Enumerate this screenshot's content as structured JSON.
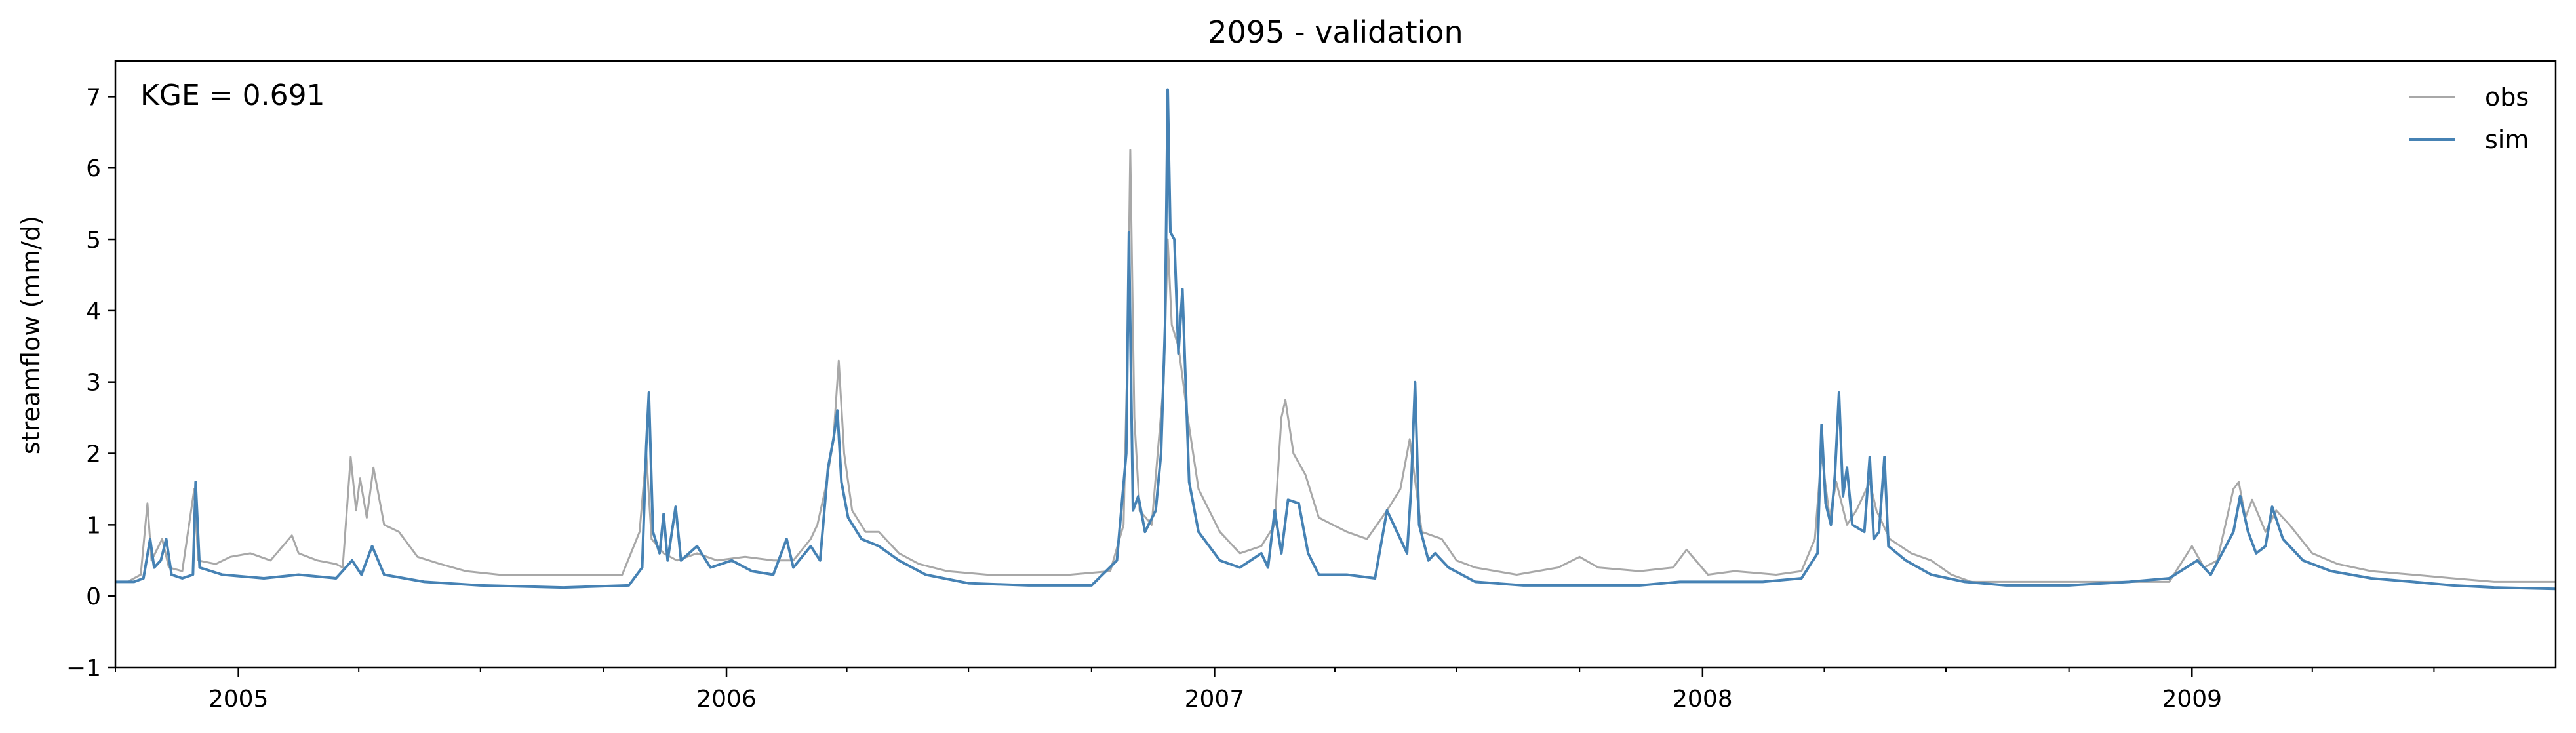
{
  "chart_data": {
    "type": "line",
    "title": "2095 - validation",
    "xlabel": "",
    "ylabel": "streamflow (mm/d)",
    "annotation": "KGE = 0.691",
    "xlim": [
      "2004-10-01",
      "2009-09-30"
    ],
    "ylim": [
      -1,
      7.5
    ],
    "yticks": [
      -1,
      0,
      1,
      2,
      3,
      4,
      5,
      6,
      7
    ],
    "xticks": [
      {
        "date": "2005-01-01",
        "label": "2005"
      },
      {
        "date": "2006-01-01",
        "label": "2006"
      },
      {
        "date": "2007-01-01",
        "label": "2007"
      },
      {
        "date": "2008-01-01",
        "label": "2008"
      },
      {
        "date": "2009-01-01",
        "label": "2009"
      }
    ],
    "minor_xticks": "quarterly",
    "grid": false,
    "legend_position": "top-right",
    "series": [
      {
        "name": "obs",
        "color": "#a8a8a8",
        "points": [
          [
            "2004-10-01",
            0.2
          ],
          [
            "2004-10-10",
            0.2
          ],
          [
            "2004-10-20",
            0.3
          ],
          [
            "2004-10-25",
            1.3
          ],
          [
            "2004-10-28",
            0.5
          ],
          [
            "2004-11-05",
            0.8
          ],
          [
            "2004-11-10",
            0.4
          ],
          [
            "2004-11-20",
            0.35
          ],
          [
            "2004-11-29",
            1.5
          ],
          [
            "2004-12-02",
            0.5
          ],
          [
            "2004-12-15",
            0.45
          ],
          [
            "2004-12-26",
            0.55
          ],
          [
            "2005-01-10",
            0.6
          ],
          [
            "2005-01-25",
            0.5
          ],
          [
            "2005-02-10",
            0.85
          ],
          [
            "2005-02-15",
            0.6
          ],
          [
            "2005-03-01",
            0.5
          ],
          [
            "2005-03-15",
            0.45
          ],
          [
            "2005-03-20",
            0.4
          ],
          [
            "2005-03-26",
            1.95
          ],
          [
            "2005-03-30",
            1.2
          ],
          [
            "2005-04-02",
            1.65
          ],
          [
            "2005-04-07",
            1.1
          ],
          [
            "2005-04-12",
            1.8
          ],
          [
            "2005-04-20",
            1.0
          ],
          [
            "2005-05-01",
            0.9
          ],
          [
            "2005-05-15",
            0.55
          ],
          [
            "2005-06-01",
            0.45
          ],
          [
            "2005-06-20",
            0.35
          ],
          [
            "2005-07-15",
            0.3
          ],
          [
            "2005-08-15",
            0.3
          ],
          [
            "2005-09-15",
            0.3
          ],
          [
            "2005-10-15",
            0.3
          ],
          [
            "2005-10-28",
            0.9
          ],
          [
            "2005-11-02",
            2.0
          ],
          [
            "2005-11-06",
            0.8
          ],
          [
            "2005-11-15",
            0.6
          ],
          [
            "2005-11-25",
            0.5
          ],
          [
            "2005-12-10",
            0.6
          ],
          [
            "2005-12-25",
            0.5
          ],
          [
            "2006-01-15",
            0.55
          ],
          [
            "2006-02-05",
            0.5
          ],
          [
            "2006-02-20",
            0.5
          ],
          [
            "2006-03-05",
            0.8
          ],
          [
            "2006-03-10",
            1.0
          ],
          [
            "2006-03-16",
            1.5
          ],
          [
            "2006-03-22",
            2.2
          ],
          [
            "2006-03-26",
            3.3
          ],
          [
            "2006-03-30",
            2.0
          ],
          [
            "2006-04-05",
            1.2
          ],
          [
            "2006-04-15",
            0.9
          ],
          [
            "2006-04-25",
            0.9
          ],
          [
            "2006-05-10",
            0.6
          ],
          [
            "2006-05-25",
            0.45
          ],
          [
            "2006-06-15",
            0.35
          ],
          [
            "2006-07-15",
            0.3
          ],
          [
            "2006-08-15",
            0.3
          ],
          [
            "2006-09-15",
            0.3
          ],
          [
            "2006-10-15",
            0.35
          ],
          [
            "2006-10-25",
            1.0
          ],
          [
            "2006-10-28",
            3.5
          ],
          [
            "2006-10-30",
            6.25
          ],
          [
            "2006-11-02",
            2.5
          ],
          [
            "2006-11-06",
            1.2
          ],
          [
            "2006-11-15",
            1.0
          ],
          [
            "2006-11-24",
            3.0
          ],
          [
            "2006-11-27",
            5.0
          ],
          [
            "2006-11-30",
            3.8
          ],
          [
            "2006-12-05",
            3.5
          ],
          [
            "2006-12-12",
            2.5
          ],
          [
            "2006-12-20",
            1.5
          ],
          [
            "2007-01-05",
            0.9
          ],
          [
            "2007-01-20",
            0.6
          ],
          [
            "2007-02-05",
            0.7
          ],
          [
            "2007-02-15",
            1.0
          ],
          [
            "2007-02-20",
            2.5
          ],
          [
            "2007-02-23",
            2.75
          ],
          [
            "2007-03-01",
            2.0
          ],
          [
            "2007-03-10",
            1.7
          ],
          [
            "2007-03-20",
            1.1
          ],
          [
            "2007-04-10",
            0.9
          ],
          [
            "2007-04-25",
            0.8
          ],
          [
            "2007-05-10",
            1.2
          ],
          [
            "2007-05-20",
            1.5
          ],
          [
            "2007-05-27",
            2.2
          ],
          [
            "2007-06-05",
            0.9
          ],
          [
            "2007-06-20",
            0.8
          ],
          [
            "2007-07-01",
            0.5
          ],
          [
            "2007-07-15",
            0.4
          ],
          [
            "2007-08-15",
            0.3
          ],
          [
            "2007-09-15",
            0.4
          ],
          [
            "2007-10-01",
            0.55
          ],
          [
            "2007-10-15",
            0.4
          ],
          [
            "2007-11-15",
            0.35
          ],
          [
            "2007-12-10",
            0.4
          ],
          [
            "2007-12-20",
            0.65
          ],
          [
            "2008-01-05",
            0.3
          ],
          [
            "2008-01-25",
            0.35
          ],
          [
            "2008-02-25",
            0.3
          ],
          [
            "2008-03-15",
            0.35
          ],
          [
            "2008-03-25",
            0.8
          ],
          [
            "2008-03-30",
            2.0
          ],
          [
            "2008-04-05",
            1.1
          ],
          [
            "2008-04-10",
            1.6
          ],
          [
            "2008-04-18",
            1.0
          ],
          [
            "2008-04-25",
            1.2
          ],
          [
            "2008-05-05",
            1.6
          ],
          [
            "2008-05-10",
            1.2
          ],
          [
            "2008-05-20",
            0.8
          ],
          [
            "2008-06-05",
            0.6
          ],
          [
            "2008-06-20",
            0.5
          ],
          [
            "2008-07-05",
            0.3
          ],
          [
            "2008-07-20",
            0.2
          ],
          [
            "2008-08-15",
            0.2
          ],
          [
            "2008-09-15",
            0.2
          ],
          [
            "2008-10-15",
            0.2
          ],
          [
            "2008-11-15",
            0.2
          ],
          [
            "2008-12-15",
            0.2
          ],
          [
            "2009-01-01",
            0.7
          ],
          [
            "2009-01-10",
            0.4
          ],
          [
            "2009-01-20",
            0.5
          ],
          [
            "2009-02-01",
            1.5
          ],
          [
            "2009-02-05",
            1.6
          ],
          [
            "2009-02-10",
            1.1
          ],
          [
            "2009-02-15",
            1.35
          ],
          [
            "2009-02-25",
            0.9
          ],
          [
            "2009-03-05",
            1.2
          ],
          [
            "2009-03-15",
            1.0
          ],
          [
            "2009-04-01",
            0.6
          ],
          [
            "2009-04-20",
            0.45
          ],
          [
            "2009-05-15",
            0.35
          ],
          [
            "2009-06-15",
            0.3
          ],
          [
            "2009-07-15",
            0.25
          ],
          [
            "2009-08-15",
            0.2
          ],
          [
            "2009-09-30",
            0.2
          ]
        ]
      },
      {
        "name": "sim",
        "color": "#4682b4",
        "points": [
          [
            "2004-10-01",
            0.2
          ],
          [
            "2004-10-15",
            0.2
          ],
          [
            "2004-10-22",
            0.25
          ],
          [
            "2004-10-27",
            0.8
          ],
          [
            "2004-10-30",
            0.4
          ],
          [
            "2004-11-04",
            0.5
          ],
          [
            "2004-11-08",
            0.8
          ],
          [
            "2004-11-12",
            0.3
          ],
          [
            "2004-11-20",
            0.25
          ],
          [
            "2004-11-28",
            0.3
          ],
          [
            "2004-11-30",
            1.6
          ],
          [
            "2004-12-03",
            0.4
          ],
          [
            "2004-12-20",
            0.3
          ],
          [
            "2005-01-20",
            0.25
          ],
          [
            "2005-02-15",
            0.3
          ],
          [
            "2005-03-15",
            0.25
          ],
          [
            "2005-03-27",
            0.5
          ],
          [
            "2005-04-03",
            0.3
          ],
          [
            "2005-04-11",
            0.7
          ],
          [
            "2005-04-20",
            0.3
          ],
          [
            "2005-05-20",
            0.2
          ],
          [
            "2005-07-01",
            0.15
          ],
          [
            "2005-09-01",
            0.12
          ],
          [
            "2005-10-20",
            0.15
          ],
          [
            "2005-10-30",
            0.4
          ],
          [
            "2005-11-02",
            2.1
          ],
          [
            "2005-11-04",
            2.85
          ],
          [
            "2005-11-07",
            0.9
          ],
          [
            "2005-11-12",
            0.6
          ],
          [
            "2005-11-15",
            1.15
          ],
          [
            "2005-11-18",
            0.5
          ],
          [
            "2005-11-24",
            1.25
          ],
          [
            "2005-11-28",
            0.5
          ],
          [
            "2005-12-10",
            0.7
          ],
          [
            "2005-12-20",
            0.4
          ],
          [
            "2006-01-05",
            0.5
          ],
          [
            "2006-01-20",
            0.35
          ],
          [
            "2006-02-05",
            0.3
          ],
          [
            "2006-02-15",
            0.8
          ],
          [
            "2006-02-20",
            0.4
          ],
          [
            "2006-03-05",
            0.7
          ],
          [
            "2006-03-12",
            0.5
          ],
          [
            "2006-03-18",
            1.8
          ],
          [
            "2006-03-22",
            2.2
          ],
          [
            "2006-03-25",
            2.6
          ],
          [
            "2006-03-28",
            1.6
          ],
          [
            "2006-04-02",
            1.1
          ],
          [
            "2006-04-12",
            0.8
          ],
          [
            "2006-04-25",
            0.7
          ],
          [
            "2006-05-10",
            0.5
          ],
          [
            "2006-05-30",
            0.3
          ],
          [
            "2006-07-01",
            0.18
          ],
          [
            "2006-08-15",
            0.15
          ],
          [
            "2006-10-01",
            0.15
          ],
          [
            "2006-10-20",
            0.5
          ],
          [
            "2006-10-27",
            2.0
          ],
          [
            "2006-10-29",
            5.1
          ],
          [
            "2006-11-01",
            1.2
          ],
          [
            "2006-11-05",
            1.4
          ],
          [
            "2006-11-10",
            0.9
          ],
          [
            "2006-11-18",
            1.2
          ],
          [
            "2006-11-22",
            2.0
          ],
          [
            "2006-11-25",
            3.8
          ],
          [
            "2006-11-27",
            7.1
          ],
          [
            "2006-11-29",
            5.1
          ],
          [
            "2006-12-02",
            5.0
          ],
          [
            "2006-12-05",
            3.4
          ],
          [
            "2006-12-08",
            4.3
          ],
          [
            "2006-12-10",
            3.2
          ],
          [
            "2006-12-13",
            1.6
          ],
          [
            "2006-12-20",
            0.9
          ],
          [
            "2007-01-05",
            0.5
          ],
          [
            "2007-01-20",
            0.4
          ],
          [
            "2007-02-05",
            0.6
          ],
          [
            "2007-02-10",
            0.4
          ],
          [
            "2007-02-15",
            1.2
          ],
          [
            "2007-02-20",
            0.6
          ],
          [
            "2007-02-25",
            1.35
          ],
          [
            "2007-03-05",
            1.3
          ],
          [
            "2007-03-12",
            0.6
          ],
          [
            "2007-03-20",
            0.3
          ],
          [
            "2007-04-10",
            0.3
          ],
          [
            "2007-05-01",
            0.25
          ],
          [
            "2007-05-10",
            1.2
          ],
          [
            "2007-05-15",
            1.0
          ],
          [
            "2007-05-25",
            0.6
          ],
          [
            "2007-05-28",
            1.5
          ],
          [
            "2007-05-31",
            3.0
          ],
          [
            "2007-06-03",
            1.0
          ],
          [
            "2007-06-10",
            0.5
          ],
          [
            "2007-06-15",
            0.6
          ],
          [
            "2007-06-25",
            0.4
          ],
          [
            "2007-07-15",
            0.2
          ],
          [
            "2007-08-20",
            0.15
          ],
          [
            "2007-10-01",
            0.15
          ],
          [
            "2007-11-15",
            0.15
          ],
          [
            "2007-12-15",
            0.2
          ],
          [
            "2008-01-15",
            0.2
          ],
          [
            "2008-02-15",
            0.2
          ],
          [
            "2008-03-15",
            0.25
          ],
          [
            "2008-03-27",
            0.6
          ],
          [
            "2008-03-30",
            2.4
          ],
          [
            "2008-04-02",
            1.3
          ],
          [
            "2008-04-06",
            1.0
          ],
          [
            "2008-04-09",
            1.7
          ],
          [
            "2008-04-12",
            2.85
          ],
          [
            "2008-04-15",
            1.4
          ],
          [
            "2008-04-18",
            1.8
          ],
          [
            "2008-04-22",
            1.0
          ],
          [
            "2008-05-01",
            0.9
          ],
          [
            "2008-05-05",
            1.95
          ],
          [
            "2008-05-08",
            0.8
          ],
          [
            "2008-05-12",
            0.9
          ],
          [
            "2008-05-16",
            1.95
          ],
          [
            "2008-05-19",
            0.7
          ],
          [
            "2008-06-01",
            0.5
          ],
          [
            "2008-06-20",
            0.3
          ],
          [
            "2008-07-15",
            0.2
          ],
          [
            "2008-08-15",
            0.15
          ],
          [
            "2008-10-01",
            0.15
          ],
          [
            "2008-11-15",
            0.2
          ],
          [
            "2008-12-15",
            0.25
          ],
          [
            "2009-01-05",
            0.5
          ],
          [
            "2009-01-15",
            0.3
          ],
          [
            "2009-02-01",
            0.9
          ],
          [
            "2009-02-06",
            1.4
          ],
          [
            "2009-02-12",
            0.9
          ],
          [
            "2009-02-18",
            0.6
          ],
          [
            "2009-02-25",
            0.7
          ],
          [
            "2009-03-02",
            1.25
          ],
          [
            "2009-03-10",
            0.8
          ],
          [
            "2009-03-25",
            0.5
          ],
          [
            "2009-04-15",
            0.35
          ],
          [
            "2009-05-15",
            0.25
          ],
          [
            "2009-06-15",
            0.2
          ],
          [
            "2009-07-15",
            0.15
          ],
          [
            "2009-08-15",
            0.12
          ],
          [
            "2009-09-30",
            0.1
          ]
        ]
      }
    ]
  }
}
